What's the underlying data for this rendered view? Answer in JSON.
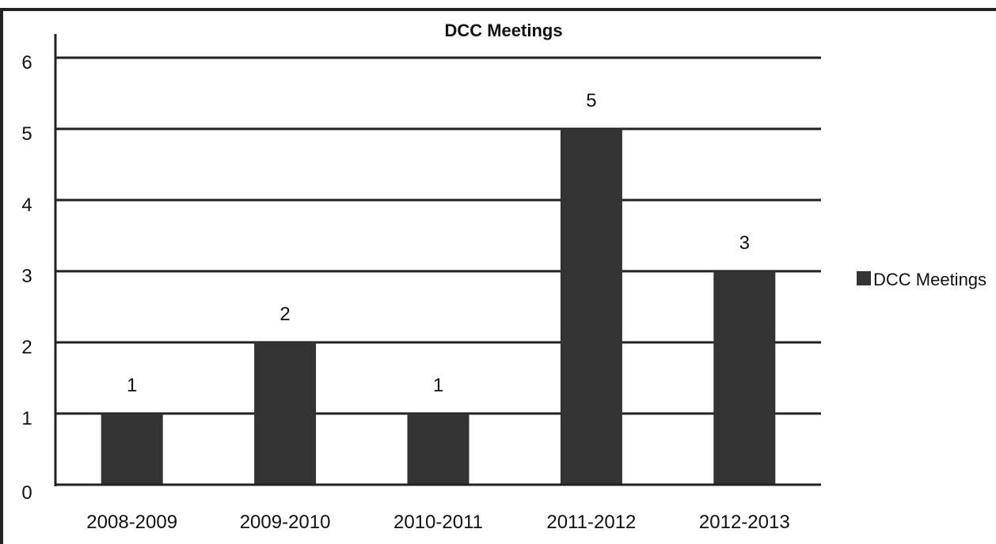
{
  "chart_data": {
    "type": "bar",
    "title": "DCC Meetings",
    "categories": [
      "2008-2009",
      "2009-2010",
      "2010-2011",
      "2011-2012",
      "2012-2013"
    ],
    "series": [
      {
        "name": "DCC Meetings",
        "values": [
          1,
          2,
          1,
          5,
          3
        ],
        "color": "#333333"
      }
    ],
    "data_labels": [
      "1",
      "2",
      "1",
      "5",
      "3"
    ],
    "y_ticks": [
      "0",
      "1",
      "2",
      "3",
      "4",
      "5",
      "6"
    ],
    "ylim": [
      0,
      6
    ],
    "grid": true,
    "legend_position": "right"
  }
}
